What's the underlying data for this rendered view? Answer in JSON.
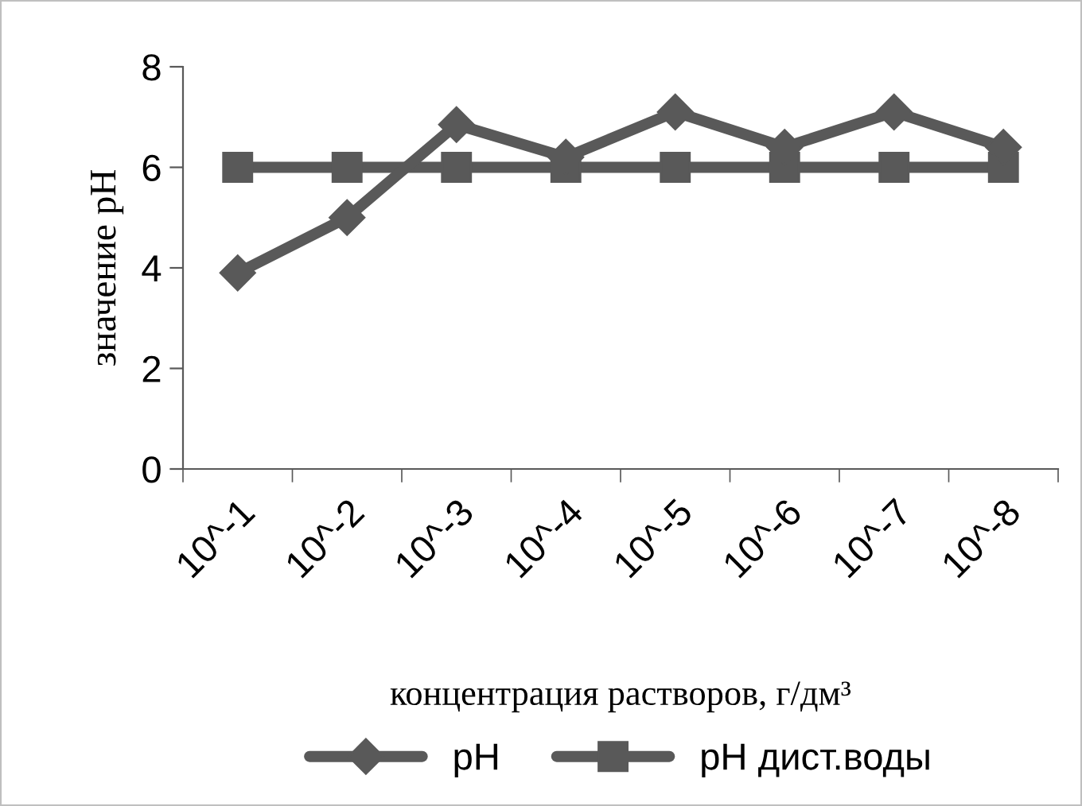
{
  "chart_data": {
    "type": "line",
    "xlabel": "концентрация растворов, г/дм³",
    "ylabel": "значение pH",
    "categories": [
      "10^-1",
      "10^-2",
      "10^-3",
      "10^-4",
      "10^-5",
      "10^-6",
      "10^-7",
      "10^-8"
    ],
    "series": [
      {
        "name": "pH",
        "color": "#595959",
        "marker": "diamond",
        "values": [
          3.9,
          5.0,
          6.85,
          6.2,
          7.1,
          6.4,
          7.1,
          6.4
        ]
      },
      {
        "name": "pH дист.воды",
        "color": "#595959",
        "marker": "square",
        "values": [
          6,
          6,
          6,
          6,
          6,
          6,
          6,
          6
        ]
      }
    ],
    "ylim": [
      0,
      8
    ],
    "yticks": [
      0,
      2,
      4,
      6,
      8
    ],
    "grid": false,
    "legend": "bottom",
    "line_style": "solid"
  }
}
